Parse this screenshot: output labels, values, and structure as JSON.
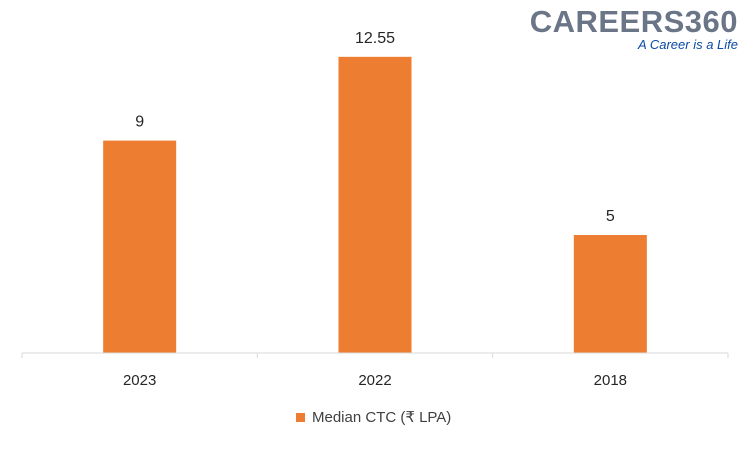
{
  "logo": {
    "name": "CAREERS360",
    "tagline": "A Career is a Life"
  },
  "chart_data": {
    "type": "bar",
    "categories": [
      "2023",
      "2022",
      "2018"
    ],
    "series": [
      {
        "name": "Median CTC (₹ LPA)",
        "values": [
          9,
          12.55,
          5
        ],
        "color": "#ed7d31"
      }
    ],
    "data_labels": [
      "9",
      "12.55",
      "5"
    ],
    "ylim": [
      0,
      14
    ],
    "grid": false,
    "legend_position": "bottom",
    "axis_color": "#d9d9d9"
  }
}
